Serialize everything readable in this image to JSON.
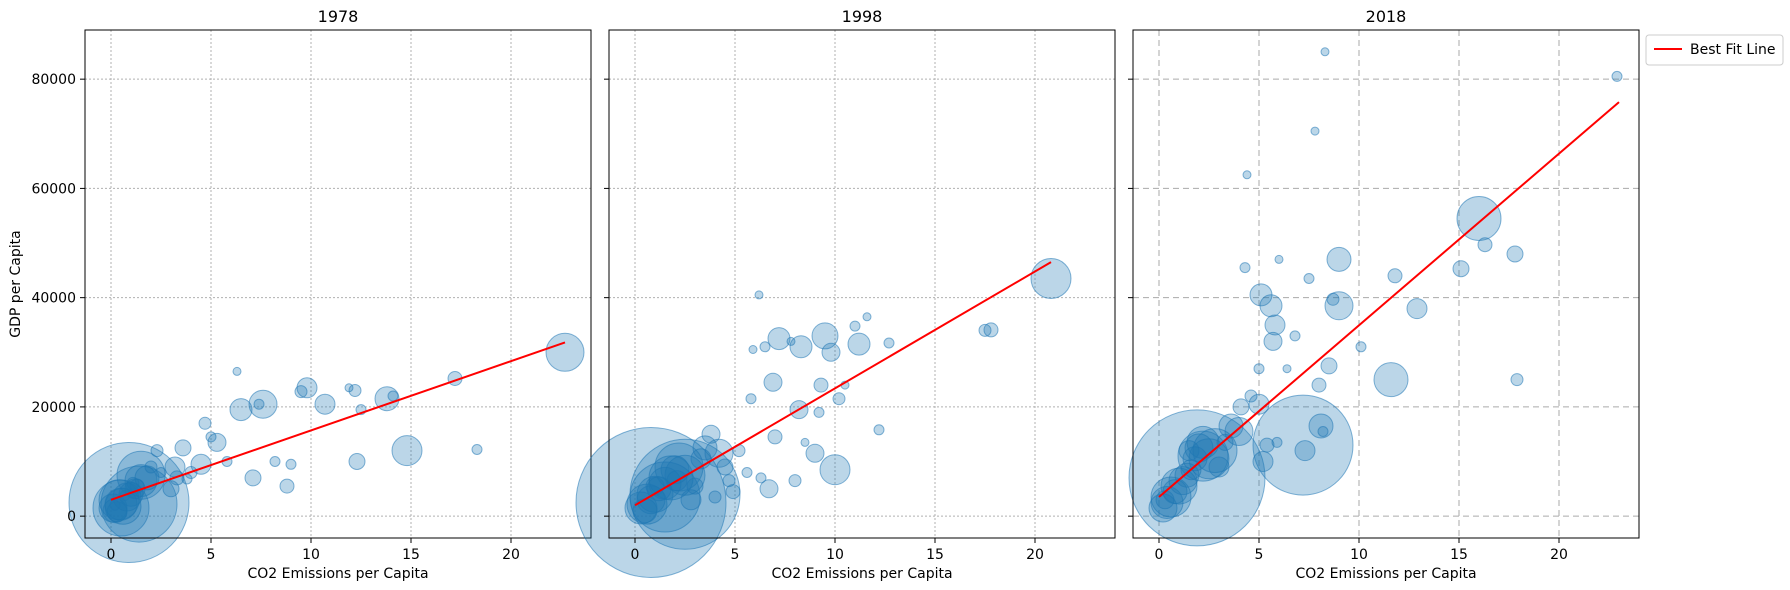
{
  "figure": {
    "legend": {
      "label": "Best Fit Line",
      "color": "#ff0000",
      "placement": "outside-right-top"
    },
    "bubble_color": "#1f77b4"
  },
  "chart_data": [
    {
      "type": "scatter",
      "title": "1978",
      "xlabel": "CO2 Emissions per Capita",
      "ylabel": "GDP per Capita",
      "xlim": [
        -1.3,
        24
      ],
      "ylim": [
        -4000,
        89000
      ],
      "xticks": [
        0,
        5,
        10,
        15,
        20
      ],
      "yticks": [
        0,
        20000,
        40000,
        60000,
        80000
      ],
      "grid": "dotted",
      "best_fit": {
        "x": [
          0,
          22.7
        ],
        "y": [
          3000,
          31800
        ]
      },
      "points": [
        [
          0.1,
          1500,
          14
        ],
        [
          0.2,
          1000,
          12
        ],
        [
          0.3,
          800,
          10
        ],
        [
          0.4,
          3000,
          20
        ],
        [
          0.5,
          2200,
          16
        ],
        [
          0.6,
          1800,
          18
        ],
        [
          0.8,
          3500,
          14
        ],
        [
          1.0,
          4000,
          12
        ],
        [
          1.2,
          5000,
          10
        ],
        [
          1.5,
          6500,
          16
        ],
        [
          1.8,
          7000,
          12
        ],
        [
          0.9,
          2500,
          60
        ],
        [
          1.4,
          2200,
          38
        ],
        [
          0.5,
          1500,
          28
        ],
        [
          1.5,
          7500,
          24
        ],
        [
          2.3,
          12000,
          6
        ],
        [
          3.0,
          5000,
          8
        ],
        [
          3.2,
          9000,
          10
        ],
        [
          3.3,
          7000,
          7
        ],
        [
          3.6,
          12500,
          8
        ],
        [
          4.0,
          8000,
          6
        ],
        [
          4.5,
          9500,
          10
        ],
        [
          4.7,
          17000,
          6
        ],
        [
          5.0,
          14500,
          5
        ],
        [
          5.3,
          13500,
          9
        ],
        [
          5.8,
          10000,
          5
        ],
        [
          6.3,
          26500,
          4
        ],
        [
          6.5,
          19500,
          11
        ],
        [
          7.1,
          7000,
          8
        ],
        [
          7.6,
          20500,
          14
        ],
        [
          7.4,
          20500,
          5
        ],
        [
          8.2,
          10000,
          5
        ],
        [
          8.8,
          5500,
          7
        ],
        [
          9.0,
          9500,
          5
        ],
        [
          9.5,
          22800,
          6
        ],
        [
          9.8,
          23500,
          10
        ],
        [
          10.7,
          20500,
          10
        ],
        [
          11.9,
          23500,
          4
        ],
        [
          12.2,
          23000,
          6
        ],
        [
          12.3,
          10000,
          8
        ],
        [
          12.5,
          19500,
          5
        ],
        [
          13.8,
          21500,
          12
        ],
        [
          14.1,
          22000,
          5
        ],
        [
          14.8,
          12000,
          15
        ],
        [
          17.2,
          25200,
          7
        ],
        [
          18.3,
          12200,
          5
        ],
        [
          22.7,
          30000,
          19
        ],
        [
          0.2,
          2000,
          5
        ],
        [
          0.7,
          3800,
          5
        ],
        [
          1.1,
          6000,
          6
        ],
        [
          1.3,
          5500,
          7
        ],
        [
          2.0,
          9000,
          6
        ],
        [
          2.5,
          8000,
          5
        ],
        [
          3.8,
          6800,
          5
        ]
      ]
    },
    {
      "type": "scatter",
      "title": "1998",
      "xlabel": "CO2 Emissions per Capita",
      "ylabel": "",
      "xlim": [
        -1.3,
        24
      ],
      "ylim": [
        -4000,
        89000
      ],
      "xticks": [
        0,
        5,
        10,
        15,
        20
      ],
      "yticks": [
        0,
        20000,
        40000,
        60000,
        80000
      ],
      "grid": "dotted",
      "best_fit": {
        "x": [
          0,
          20.8
        ],
        "y": [
          2000,
          46500
        ]
      },
      "points": [
        [
          0.3,
          1500,
          16
        ],
        [
          0.5,
          1000,
          12
        ],
        [
          0.6,
          2200,
          20
        ],
        [
          0.8,
          3000,
          14
        ],
        [
          1.0,
          4000,
          18
        ],
        [
          1.2,
          5000,
          12
        ],
        [
          1.5,
          6000,
          16
        ],
        [
          1.8,
          7000,
          22
        ],
        [
          2.0,
          8500,
          14
        ],
        [
          2.2,
          9000,
          24
        ],
        [
          2.5,
          7500,
          20
        ],
        [
          0.8,
          2500,
          75
        ],
        [
          2.5,
          4000,
          55
        ],
        [
          1.5,
          3500,
          35
        ],
        [
          2.8,
          3000,
          10
        ],
        [
          3.0,
          5500,
          8
        ],
        [
          3.3,
          10500,
          10
        ],
        [
          3.5,
          12500,
          12
        ],
        [
          3.8,
          15000,
          9
        ],
        [
          4.0,
          3500,
          6
        ],
        [
          4.2,
          11500,
          14
        ],
        [
          4.5,
          9000,
          8
        ],
        [
          4.7,
          6500,
          6
        ],
        [
          4.9,
          4500,
          7
        ],
        [
          5.2,
          12000,
          6
        ],
        [
          5.6,
          8000,
          5
        ],
        [
          5.8,
          21500,
          5
        ],
        [
          5.9,
          30500,
          4
        ],
        [
          6.2,
          40500,
          4
        ],
        [
          6.3,
          7000,
          5
        ],
        [
          6.5,
          31000,
          5
        ],
        [
          6.7,
          5000,
          9
        ],
        [
          6.9,
          24500,
          9
        ],
        [
          7.0,
          14500,
          7
        ],
        [
          7.2,
          32500,
          11
        ],
        [
          7.8,
          32000,
          4
        ],
        [
          8.0,
          6500,
          6
        ],
        [
          8.2,
          19500,
          9
        ],
        [
          8.3,
          31000,
          11
        ],
        [
          8.5,
          13500,
          4
        ],
        [
          9.0,
          11500,
          9
        ],
        [
          9.2,
          19000,
          5
        ],
        [
          9.3,
          24000,
          7
        ],
        [
          9.5,
          33000,
          13
        ],
        [
          9.8,
          30000,
          9
        ],
        [
          10.0,
          8500,
          15
        ],
        [
          10.2,
          21500,
          6
        ],
        [
          10.5,
          24000,
          4
        ],
        [
          11.0,
          34800,
          5
        ],
        [
          11.2,
          31500,
          11
        ],
        [
          11.6,
          36500,
          4
        ],
        [
          12.2,
          15800,
          5
        ],
        [
          12.7,
          31700,
          5
        ],
        [
          17.5,
          34000,
          6
        ],
        [
          17.8,
          34100,
          7
        ],
        [
          20.8,
          43500,
          20
        ],
        [
          1.0,
          5500,
          9
        ],
        [
          2.1,
          6500,
          10
        ]
      ]
    },
    {
      "type": "scatter",
      "title": "2018",
      "xlabel": "CO2 Emissions per Capita",
      "ylabel": "",
      "xlim": [
        -1.3,
        24
      ],
      "ylim": [
        -4000,
        89000
      ],
      "xticks": [
        0,
        5,
        10,
        15,
        20
      ],
      "yticks": [
        0,
        20000,
        40000,
        60000,
        80000
      ],
      "grid": "dashed",
      "best_fit": {
        "x": [
          0,
          23.0
        ],
        "y": [
          3500,
          75800
        ]
      },
      "points": [
        [
          0.2,
          1500,
          14
        ],
        [
          0.4,
          2500,
          16
        ],
        [
          0.6,
          3500,
          20
        ],
        [
          0.8,
          4500,
          12
        ],
        [
          1.0,
          5500,
          18
        ],
        [
          1.2,
          6500,
          14
        ],
        [
          1.4,
          7500,
          12
        ],
        [
          1.6,
          8500,
          10
        ],
        [
          1.8,
          10500,
          12
        ],
        [
          2.0,
          12500,
          14
        ],
        [
          2.2,
          13500,
          16
        ],
        [
          1.9,
          7000,
          68
        ],
        [
          2.2,
          11000,
          25
        ],
        [
          2.5,
          10500,
          20
        ],
        [
          2.8,
          12000,
          22
        ],
        [
          3.0,
          9000,
          10
        ],
        [
          3.3,
          13500,
          8
        ],
        [
          3.6,
          16500,
          12
        ],
        [
          4.0,
          15500,
          14
        ],
        [
          4.1,
          20000,
          8
        ],
        [
          4.3,
          45500,
          5
        ],
        [
          4.4,
          62500,
          4
        ],
        [
          4.6,
          22000,
          6
        ],
        [
          5.0,
          20500,
          10
        ],
        [
          5.0,
          27000,
          5
        ],
        [
          5.1,
          40500,
          11
        ],
        [
          5.2,
          10000,
          10
        ],
        [
          5.4,
          13000,
          7
        ],
        [
          5.6,
          38500,
          11
        ],
        [
          5.7,
          32000,
          9
        ],
        [
          5.8,
          35000,
          10
        ],
        [
          5.9,
          13500,
          5
        ],
        [
          6.0,
          47000,
          4
        ],
        [
          6.4,
          27000,
          4
        ],
        [
          6.8,
          33000,
          5
        ],
        [
          7.2,
          13000,
          50
        ],
        [
          7.3,
          12000,
          10
        ],
        [
          7.5,
          43500,
          5
        ],
        [
          7.8,
          70500,
          4
        ],
        [
          8.0,
          24000,
          7
        ],
        [
          8.1,
          16500,
          12
        ],
        [
          8.2,
          15500,
          5
        ],
        [
          8.3,
          85000,
          4
        ],
        [
          8.5,
          27500,
          8
        ],
        [
          8.7,
          39700,
          6
        ],
        [
          9.0,
          38500,
          14
        ],
        [
          9.0,
          47000,
          12
        ],
        [
          10.1,
          31000,
          5
        ],
        [
          11.6,
          25000,
          17
        ],
        [
          11.8,
          44000,
          7
        ],
        [
          12.9,
          38000,
          10
        ],
        [
          15.1,
          45300,
          8
        ],
        [
          16.0,
          54500,
          22
        ],
        [
          16.3,
          49700,
          7
        ],
        [
          17.8,
          48000,
          8
        ],
        [
          17.9,
          25000,
          6
        ],
        [
          22.9,
          80500,
          5
        ],
        [
          0.3,
          3000,
          9
        ],
        [
          1.5,
          12000,
          10
        ]
      ]
    }
  ]
}
